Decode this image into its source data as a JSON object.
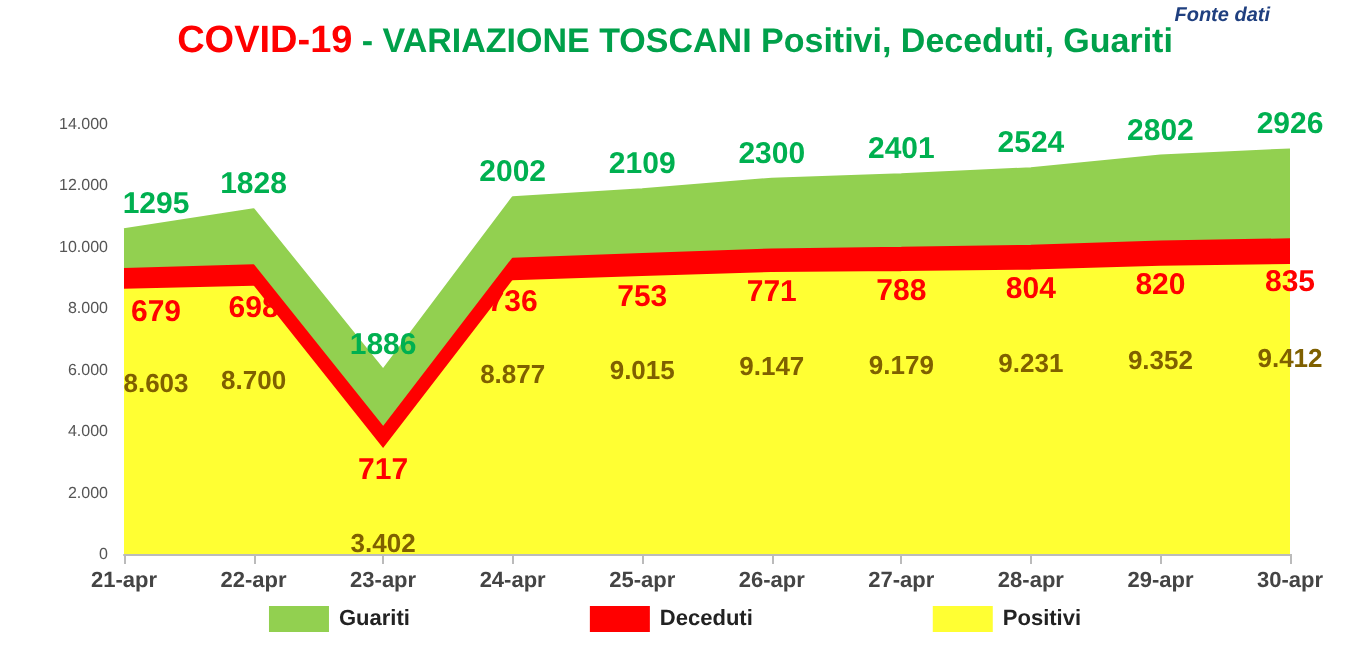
{
  "chart_data": {
    "type": "area",
    "title": "COVID-19 - VARIAZIONE TOSCANI Positivi, Deceduti, Guariti",
    "annotations": [
      "Fonte dati"
    ],
    "categories": [
      "21-apr",
      "22-apr",
      "23-apr",
      "24-apr",
      "25-apr",
      "26-apr",
      "27-apr",
      "28-apr",
      "29-apr",
      "30-apr"
    ],
    "stacked": true,
    "series": [
      {
        "name": "Positivi",
        "color": "#ffff33",
        "values": [
          8603,
          8700,
          3402,
          8877,
          9015,
          9147,
          9179,
          9231,
          9352,
          9412
        ],
        "value_labels": [
          "8.603",
          "8.700",
          "3.402",
          "8.877",
          "9.015",
          "9.147",
          "9.179",
          "9.231",
          "9.352",
          "9.412"
        ]
      },
      {
        "name": "Deceduti",
        "color": "#ff0000",
        "values": [
          679,
          698,
          717,
          736,
          753,
          771,
          788,
          804,
          820,
          835
        ],
        "value_labels": [
          "679",
          "698",
          "717",
          "736",
          "753",
          "771",
          "788",
          "804",
          "820",
          "835"
        ]
      },
      {
        "name": "Guariti",
        "color": "#92d050",
        "values": [
          1295,
          1828,
          1886,
          2002,
          2109,
          2300,
          2401,
          2524,
          2802,
          2926
        ],
        "value_labels": [
          "1295",
          "1828",
          "1886",
          "2002",
          "2109",
          "2300",
          "2401",
          "2524",
          "2802",
          "2926"
        ]
      }
    ],
    "ylim": [
      0,
      14000
    ],
    "yticks": [
      {
        "value": 0,
        "label": "0"
      },
      {
        "value": 2000,
        "label": "2.000"
      },
      {
        "value": 4000,
        "label": "4.000"
      },
      {
        "value": 6000,
        "label": "6.000"
      },
      {
        "value": 8000,
        "label": "8.000"
      },
      {
        "value": 10000,
        "label": "10.000"
      },
      {
        "value": 12000,
        "label": "12.000"
      },
      {
        "value": 14000,
        "label": "14.000"
      }
    ],
    "legend": "bottom",
    "grid": false
  }
}
